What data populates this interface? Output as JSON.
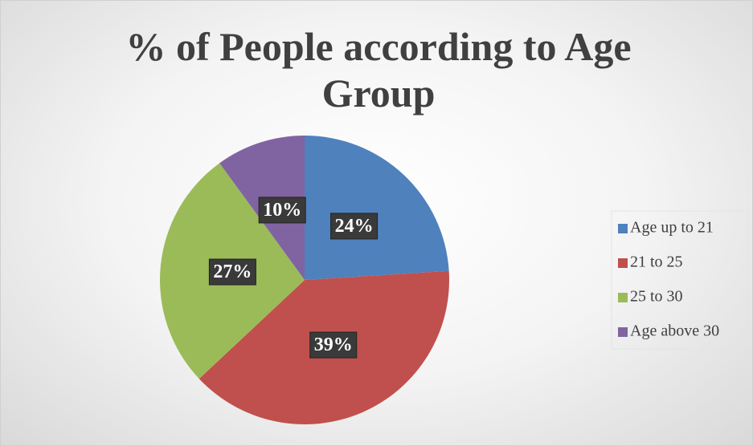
{
  "chart_data": {
    "type": "pie",
    "title": "% of People according to Age Group",
    "categories": [
      "Age up to 21",
      "21 to 25",
      "25 to 30",
      "Age above 30"
    ],
    "values": [
      24,
      39,
      27,
      10
    ],
    "value_labels": [
      "24%",
      "39%",
      "27%",
      "10%"
    ],
    "colors": [
      "#4f81bd",
      "#c0504d",
      "#9bbb59",
      "#8064a2"
    ],
    "legend": "right"
  }
}
